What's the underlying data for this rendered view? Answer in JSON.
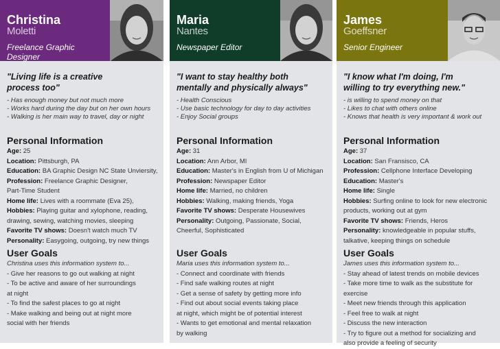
{
  "personas": [
    {
      "first_name": "Christina",
      "last_name": "Moletti",
      "role": "Freelance Graphic Designer",
      "header_color": "#6b2a7e",
      "photo": "woman-portrait-photo",
      "quote": "\"Living life is a creative\nprocess too\"",
      "traits": [
        "- Has enough money but not much more",
        "- Works hard during the day but on her own hours",
        "- Walking is her main way to travel, day or night"
      ],
      "personal_heading": "Personal Information",
      "personal": [
        {
          "label": "Age:",
          "value": "25"
        },
        {
          "label": "Location:",
          "value": "Pittsburgh, PA"
        },
        {
          "label": "Education:",
          "value": "BA Graphic Design NC State Unviersity,"
        },
        {
          "label": "Profession:",
          "value": "Freelance Graphic Designer,\nPart-Time Student"
        },
        {
          "label": "Home life:",
          "value": "Lives with a roommate (Eva 25),"
        },
        {
          "label": "Hobbies:",
          "value": "Playing guitar and xylophone, reading,\ndrawing, sewing, watching movies, sleeping"
        },
        {
          "label": "Favorite TV shows:",
          "value": "Doesn't watch much TV"
        },
        {
          "label": "Personality:",
          "value": "Easygoing, outgoing, try new things"
        }
      ],
      "goals_heading": "User Goals",
      "goals_intro": "Christina uses this information system to...",
      "goals": [
        "- Give her reasons to go out walking at night",
        "- To be active and aware of her surroundings\n  at night",
        "- To find the safest places to go at night",
        "- Make walking and being out at night more\n  social with her friends"
      ]
    },
    {
      "first_name": "Maria",
      "last_name": "Nantes",
      "role": "Newspaper Editor",
      "header_color": "#0f3d29",
      "photo": "woman-portrait-photo",
      "quote": "\"I want to stay healthy both\nmentally and physically always\"",
      "traits": [
        "- Health Conscious",
        "- Use basic technology for day to day activities",
        "- Enjoy Social groups"
      ],
      "personal_heading": "Personal Information",
      "personal": [
        {
          "label": "Age:",
          "value": "31"
        },
        {
          "label": "Location:",
          "value": "Ann Arbor, MI"
        },
        {
          "label": "Education:",
          "value": "Master's in English from U of Michigan"
        },
        {
          "label": "Profession:",
          "value": "Newspaper Editor"
        },
        {
          "label": "Home life:",
          "value": "Married, no children"
        },
        {
          "label": "Hobbies:",
          "value": "Walking, making friends, Yoga"
        },
        {
          "label": "Favorite TV shows:",
          "value": "Desperate Housewives"
        },
        {
          "label": "Personality:",
          "value": "Outgoing, Passionate, Social,\nCheerful, Sophisticated"
        }
      ],
      "goals_heading": "User Goals",
      "goals_intro": "Maria uses this information system to...",
      "goals": [
        "- Connect and coordinate with friends",
        "- Find safe walking routes at night",
        "- Get a sense of safety by getting more info",
        "- Find out about social events taking place\n  at night, which might be of potential interest",
        "- Wants to get emotional and mental relaxation\n  by walking"
      ]
    },
    {
      "first_name": "James",
      "last_name": "Goeffsner",
      "role": "Senior Engineer",
      "header_color": "#7b750f",
      "photo": "man-portrait-photo",
      "quote": "\"I know what I'm doing, I'm\nwilling to try everything new.\"",
      "traits": [
        "- is willing to spend money on that",
        "- Likes to chat with others online",
        "- Knows that health is very important & work out"
      ],
      "personal_heading": "Personal Information",
      "personal": [
        {
          "label": "Age:",
          "value": "37"
        },
        {
          "label": "Location:",
          "value": "San Fransisco, CA"
        },
        {
          "label": "Profession:",
          "value": "Cellphone Interface Developing"
        },
        {
          "label": "Education:",
          "value": "Master's"
        },
        {
          "label": "Home life:",
          "value": "Single"
        },
        {
          "label": "Hobbies:",
          "value": "Surfing online to look for new electronic\nproducts, working out at gym"
        },
        {
          "label": "Favorite TV shows:",
          "value": "Friends, Heros"
        },
        {
          "label": "Personality:",
          "value": "knowledgeable in popular stuffs,\ntalkative, keeping things on schedule"
        }
      ],
      "goals_heading": "User Goals",
      "goals_intro": "James uses this information system to...",
      "goals": [
        "- Stay ahead of latest trends on mobile devices",
        "- Take more time to walk as the substitute for\n  exercise",
        "- Meet new friends through this application",
        "- Feel free to walk at night",
        "- Discuss the new interaction",
        "- Try to figure out a method for socializing and\n  also provide a feeling of security"
      ]
    }
  ]
}
